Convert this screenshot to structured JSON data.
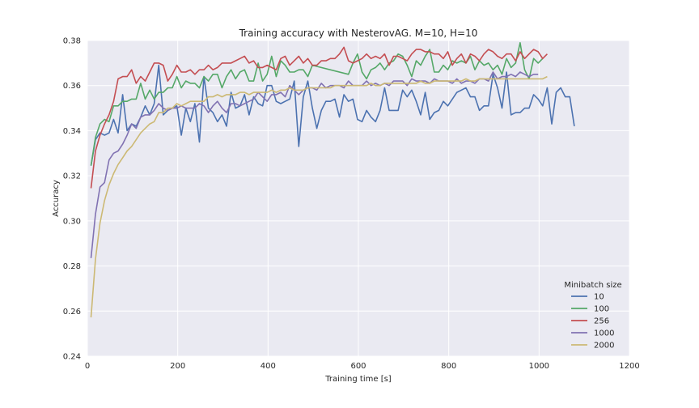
{
  "chart_data": {
    "type": "line",
    "title": "Training accuracy with NesterovAG. M=10, H=10",
    "xlabel": "Training time [s]",
    "ylabel": "Accuracy",
    "xlim": [
      0,
      1200
    ],
    "ylim": [
      0.24,
      0.38
    ],
    "xticks": [
      0,
      200,
      400,
      600,
      800,
      1000,
      1200
    ],
    "yticks": [
      0.24,
      0.26,
      0.28,
      0.3,
      0.32,
      0.34,
      0.36,
      0.38
    ],
    "xtick_labels": [
      "0",
      "200",
      "400",
      "600",
      "800",
      "1000",
      "1200"
    ],
    "ytick_labels": [
      "0.24",
      "0.26",
      "0.28",
      "0.30",
      "0.32",
      "0.34",
      "0.36",
      "0.38"
    ],
    "grid": true,
    "legend": {
      "title": "Minibatch size",
      "placement": "bottom-right"
    },
    "series": [
      {
        "name": "10",
        "color": "#4c72b0",
        "x": [
          8,
          18,
          28,
          38,
          48,
          58,
          68,
          78,
          88,
          98,
          108,
          118,
          128,
          138,
          148,
          158,
          168,
          178,
          188,
          198,
          208,
          218,
          228,
          238,
          248,
          258,
          268,
          278,
          288,
          298,
          308,
          318,
          328,
          338,
          348,
          358,
          368,
          378,
          388,
          398,
          408,
          418,
          428,
          438,
          448,
          458,
          468,
          478,
          488,
          498,
          508,
          518,
          528,
          538,
          548,
          558,
          568,
          578,
          588,
          598,
          608,
          618,
          628,
          638,
          648,
          658,
          668,
          678,
          688,
          698,
          708,
          718,
          728,
          738,
          748,
          758,
          768,
          778,
          788,
          798,
          808,
          818,
          828,
          838,
          848,
          858,
          868,
          878,
          888,
          898,
          908,
          918,
          928,
          938,
          948,
          958,
          968,
          978,
          988,
          998,
          1008,
          1018,
          1028,
          1038,
          1048,
          1058,
          1068,
          1078
        ],
        "y": [
          0.3245,
          0.336,
          0.339,
          0.338,
          0.339,
          0.345,
          0.339,
          0.356,
          0.34,
          0.343,
          0.342,
          0.346,
          0.351,
          0.347,
          0.352,
          0.369,
          0.347,
          0.349,
          0.35,
          0.351,
          0.338,
          0.35,
          0.344,
          0.352,
          0.335,
          0.364,
          0.35,
          0.348,
          0.344,
          0.347,
          0.342,
          0.357,
          0.35,
          0.351,
          0.356,
          0.347,
          0.355,
          0.352,
          0.351,
          0.36,
          0.36,
          0.353,
          0.352,
          0.353,
          0.354,
          0.362,
          0.333,
          0.355,
          0.362,
          0.35,
          0.341,
          0.349,
          0.353,
          0.353,
          0.354,
          0.346,
          0.356,
          0.353,
          0.354,
          0.345,
          0.344,
          0.349,
          0.346,
          0.344,
          0.349,
          0.359,
          0.349,
          0.349,
          0.349,
          0.358,
          0.355,
          0.358,
          0.353,
          0.347,
          0.357,
          0.345,
          0.348,
          0.349,
          0.353,
          0.351,
          0.354,
          0.357,
          0.358,
          0.359,
          0.355,
          0.355,
          0.349,
          0.351,
          0.351,
          0.365,
          0.359,
          0.35,
          0.366,
          0.347,
          0.348,
          0.348,
          0.35,
          0.35,
          0.356,
          0.354,
          0.351,
          0.359,
          0.343,
          0.357,
          0.359,
          0.355,
          0.355,
          0.342
        ]
      },
      {
        "name": "100",
        "color": "#55a868",
        "x": [
          8,
          18,
          28,
          38,
          48,
          58,
          68,
          78,
          88,
          98,
          108,
          118,
          128,
          138,
          148,
          158,
          168,
          178,
          188,
          198,
          208,
          218,
          228,
          238,
          248,
          258,
          268,
          278,
          288,
          298,
          308,
          318,
          328,
          338,
          348,
          358,
          368,
          378,
          388,
          398,
          408,
          418,
          428,
          438,
          448,
          458,
          468,
          478,
          488,
          498,
          578,
          588,
          598,
          608,
          618,
          628,
          638,
          648,
          658,
          668,
          678,
          688,
          698,
          708,
          718,
          728,
          738,
          748,
          758,
          768,
          778,
          788,
          798,
          808,
          818,
          828,
          838,
          848,
          858,
          868,
          878,
          888,
          898,
          908,
          918,
          928,
          938,
          948,
          958,
          968,
          978,
          988,
          998,
          1008
        ],
        "y": [
          0.3245,
          0.337,
          0.343,
          0.345,
          0.344,
          0.351,
          0.351,
          0.353,
          0.353,
          0.354,
          0.354,
          0.361,
          0.354,
          0.358,
          0.354,
          0.357,
          0.357,
          0.359,
          0.359,
          0.364,
          0.359,
          0.362,
          0.361,
          0.361,
          0.359,
          0.364,
          0.362,
          0.365,
          0.365,
          0.359,
          0.364,
          0.367,
          0.363,
          0.366,
          0.367,
          0.362,
          0.362,
          0.37,
          0.362,
          0.365,
          0.373,
          0.364,
          0.371,
          0.369,
          0.366,
          0.366,
          0.367,
          0.367,
          0.364,
          0.369,
          0.365,
          0.37,
          0.374,
          0.366,
          0.363,
          0.367,
          0.368,
          0.37,
          0.367,
          0.37,
          0.371,
          0.374,
          0.373,
          0.369,
          0.364,
          0.371,
          0.369,
          0.373,
          0.376,
          0.366,
          0.366,
          0.369,
          0.367,
          0.371,
          0.37,
          0.371,
          0.37,
          0.373,
          0.367,
          0.371,
          0.369,
          0.37,
          0.367,
          0.369,
          0.365,
          0.372,
          0.368,
          0.37,
          0.379,
          0.367,
          0.363,
          0.372,
          0.37,
          0.372
        ]
      },
      {
        "name": "256",
        "color": "#c44e52",
        "x": [
          8,
          18,
          28,
          38,
          48,
          58,
          68,
          78,
          88,
          98,
          108,
          118,
          128,
          138,
          148,
          158,
          168,
          178,
          188,
          198,
          208,
          218,
          228,
          238,
          248,
          258,
          268,
          278,
          288,
          298,
          308,
          318,
          328,
          338,
          348,
          358,
          368,
          378,
          388,
          398,
          408,
          418,
          428,
          438,
          448,
          458,
          468,
          478,
          488,
          498,
          508,
          518,
          528,
          538,
          548,
          558,
          568,
          578,
          588,
          598,
          608,
          618,
          628,
          638,
          648,
          658,
          668,
          678,
          688,
          698,
          708,
          718,
          728,
          738,
          748,
          758,
          768,
          778,
          788,
          798,
          808,
          818,
          828,
          838,
          848,
          858,
          868,
          878,
          888,
          898,
          908,
          918,
          928,
          938,
          948,
          958,
          968,
          978,
          988,
          998,
          1008,
          1018
        ],
        "y": [
          0.3145,
          0.331,
          0.338,
          0.343,
          0.347,
          0.353,
          0.363,
          0.364,
          0.364,
          0.367,
          0.361,
          0.364,
          0.362,
          0.366,
          0.37,
          0.37,
          0.369,
          0.362,
          0.365,
          0.369,
          0.366,
          0.366,
          0.367,
          0.365,
          0.367,
          0.367,
          0.369,
          0.367,
          0.368,
          0.37,
          0.37,
          0.37,
          0.371,
          0.372,
          0.373,
          0.37,
          0.371,
          0.368,
          0.368,
          0.369,
          0.368,
          0.367,
          0.372,
          0.373,
          0.369,
          0.371,
          0.373,
          0.37,
          0.372,
          0.369,
          0.369,
          0.371,
          0.371,
          0.372,
          0.372,
          0.374,
          0.377,
          0.371,
          0.37,
          0.371,
          0.372,
          0.374,
          0.372,
          0.373,
          0.372,
          0.374,
          0.369,
          0.373,
          0.373,
          0.372,
          0.371,
          0.374,
          0.376,
          0.376,
          0.375,
          0.375,
          0.374,
          0.374,
          0.372,
          0.375,
          0.369,
          0.372,
          0.374,
          0.37,
          0.374,
          0.373,
          0.371,
          0.374,
          0.376,
          0.375,
          0.373,
          0.372,
          0.374,
          0.374,
          0.371,
          0.375,
          0.372,
          0.374,
          0.376,
          0.375,
          0.372,
          0.374
        ]
      },
      {
        "name": "1000",
        "color": "#8172b2",
        "x": [
          8,
          18,
          28,
          38,
          48,
          58,
          68,
          78,
          88,
          98,
          108,
          118,
          128,
          138,
          148,
          158,
          168,
          178,
          188,
          198,
          208,
          218,
          228,
          238,
          248,
          258,
          268,
          278,
          288,
          298,
          308,
          318,
          328,
          338,
          348,
          358,
          368,
          378,
          388,
          398,
          408,
          418,
          428,
          438,
          448,
          458,
          468,
          478,
          488,
          498,
          508,
          518,
          528,
          538,
          548,
          558,
          568,
          578,
          588,
          598,
          608,
          618,
          628,
          638,
          648,
          658,
          668,
          678,
          688,
          698,
          708,
          718,
          728,
          738,
          748,
          758,
          768,
          778,
          788,
          798,
          808,
          818,
          828,
          838,
          848,
          858,
          868,
          878,
          888,
          898,
          908,
          918,
          928,
          938,
          948,
          958,
          968,
          978,
          988,
          998
        ],
        "y": [
          0.2835,
          0.303,
          0.315,
          0.317,
          0.327,
          0.33,
          0.331,
          0.334,
          0.338,
          0.343,
          0.341,
          0.346,
          0.347,
          0.347,
          0.349,
          0.352,
          0.35,
          0.349,
          0.35,
          0.35,
          0.351,
          0.35,
          0.35,
          0.35,
          0.352,
          0.351,
          0.348,
          0.351,
          0.353,
          0.35,
          0.348,
          0.352,
          0.352,
          0.351,
          0.352,
          0.353,
          0.354,
          0.357,
          0.355,
          0.353,
          0.356,
          0.356,
          0.357,
          0.355,
          0.36,
          0.358,
          0.356,
          0.358,
          0.359,
          0.359,
          0.358,
          0.361,
          0.359,
          0.36,
          0.36,
          0.36,
          0.359,
          0.362,
          0.36,
          0.36,
          0.36,
          0.362,
          0.36,
          0.361,
          0.36,
          0.361,
          0.36,
          0.362,
          0.362,
          0.362,
          0.36,
          0.363,
          0.362,
          0.362,
          0.362,
          0.361,
          0.363,
          0.362,
          0.362,
          0.362,
          0.361,
          0.363,
          0.361,
          0.362,
          0.362,
          0.361,
          0.363,
          0.363,
          0.362,
          0.366,
          0.363,
          0.364,
          0.364,
          0.365,
          0.364,
          0.366,
          0.365,
          0.364,
          0.365,
          0.365
        ]
      },
      {
        "name": "2000",
        "color": "#ccb974",
        "x": [
          8,
          18,
          28,
          38,
          48,
          58,
          68,
          78,
          88,
          98,
          108,
          118,
          128,
          138,
          148,
          158,
          168,
          178,
          188,
          198,
          208,
          218,
          228,
          238,
          248,
          258,
          268,
          278,
          288,
          298,
          308,
          318,
          328,
          338,
          348,
          358,
          368,
          378,
          388,
          398,
          408,
          418,
          428,
          438,
          448,
          458,
          468,
          478,
          488,
          498,
          508,
          518,
          528,
          538,
          548,
          558,
          568,
          578,
          588,
          598,
          608,
          618,
          628,
          638,
          648,
          658,
          668,
          678,
          688,
          698,
          708,
          718,
          728,
          738,
          748,
          758,
          768,
          778,
          788,
          798,
          808,
          818,
          828,
          838,
          848,
          858,
          868,
          878,
          888,
          898,
          908,
          918,
          928,
          938,
          948,
          958,
          968,
          978,
          988,
          998,
          1008,
          1018
        ],
        "y": [
          0.2572,
          0.283,
          0.299,
          0.309,
          0.316,
          0.321,
          0.325,
          0.328,
          0.331,
          0.333,
          0.336,
          0.339,
          0.341,
          0.343,
          0.344,
          0.348,
          0.348,
          0.35,
          0.35,
          0.352,
          0.351,
          0.352,
          0.353,
          0.353,
          0.353,
          0.353,
          0.355,
          0.355,
          0.356,
          0.355,
          0.356,
          0.356,
          0.356,
          0.357,
          0.357,
          0.356,
          0.357,
          0.357,
          0.357,
          0.357,
          0.358,
          0.357,
          0.358,
          0.358,
          0.359,
          0.358,
          0.358,
          0.358,
          0.359,
          0.359,
          0.359,
          0.359,
          0.359,
          0.359,
          0.36,
          0.36,
          0.36,
          0.36,
          0.36,
          0.36,
          0.36,
          0.36,
          0.361,
          0.36,
          0.36,
          0.361,
          0.361,
          0.361,
          0.361,
          0.361,
          0.361,
          0.361,
          0.361,
          0.362,
          0.361,
          0.361,
          0.362,
          0.362,
          0.362,
          0.362,
          0.362,
          0.362,
          0.362,
          0.363,
          0.362,
          0.362,
          0.363,
          0.363,
          0.363,
          0.363,
          0.363,
          0.363,
          0.363,
          0.363,
          0.363,
          0.363,
          0.363,
          0.363,
          0.363,
          0.363,
          0.363,
          0.364
        ]
      }
    ]
  }
}
